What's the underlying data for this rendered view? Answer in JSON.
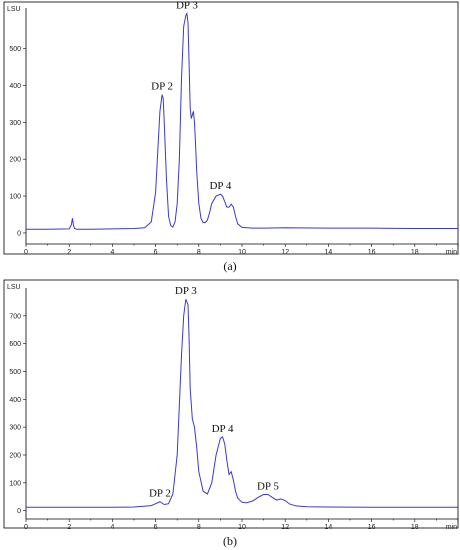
{
  "chart_data": [
    {
      "type": "line",
      "panel_label": "(a)",
      "y_unit": "LSU",
      "x_unit": "min",
      "xlim": [
        0,
        20
      ],
      "ylim": [
        -30,
        610
      ],
      "x_ticks": [
        "0",
        "2",
        "4",
        "6",
        "8",
        "10",
        "12",
        "14",
        "16",
        "18"
      ],
      "y_ticks": [
        "0",
        "100",
        "200",
        "300",
        "400",
        "500"
      ],
      "y_tick_values": [
        0,
        100,
        200,
        300,
        400,
        500
      ],
      "series": [
        {
          "color": "#3a3acc",
          "x": [
            0,
            1.0,
            2.0,
            2.1,
            2.15,
            2.2,
            2.25,
            2.35,
            3.0,
            4.0,
            5.0,
            5.5,
            5.8,
            6.0,
            6.1,
            6.2,
            6.3,
            6.35,
            6.4,
            6.5,
            6.6,
            6.7,
            6.8,
            6.9,
            7.0,
            7.1,
            7.2,
            7.3,
            7.4,
            7.45,
            7.5,
            7.55,
            7.6,
            7.65,
            7.7,
            7.75,
            7.8,
            7.85,
            7.9,
            8.0,
            8.1,
            8.2,
            8.3,
            8.4,
            8.5,
            8.6,
            8.8,
            9.0,
            9.1,
            9.2,
            9.3,
            9.4,
            9.5,
            9.6,
            9.7,
            9.8,
            10.0,
            10.5,
            11.0,
            12.0,
            14.0,
            16.0,
            18.0,
            20.0
          ],
          "y": [
            10,
            10,
            11,
            22,
            40,
            20,
            12,
            10,
            10,
            11,
            12,
            14,
            30,
            110,
            220,
            330,
            375,
            365,
            300,
            150,
            45,
            20,
            16,
            30,
            80,
            200,
            420,
            560,
            590,
            595,
            570,
            460,
            340,
            310,
            320,
            330,
            300,
            240,
            170,
            80,
            40,
            28,
            28,
            35,
            55,
            80,
            100,
            105,
            100,
            85,
            70,
            70,
            78,
            70,
            45,
            25,
            15,
            13,
            13,
            14,
            13,
            13,
            12,
            12
          ]
        }
      ],
      "annotations": [
        {
          "text": "DP 2",
          "x": 6.3,
          "y": 375
        },
        {
          "text": "DP 3",
          "x": 7.45,
          "y": 595
        },
        {
          "text": "DP 4",
          "x": 9.0,
          "y": 105
        }
      ]
    },
    {
      "type": "line",
      "panel_label": "(b)",
      "y_unit": "LSU",
      "x_unit": "min",
      "xlim": [
        0,
        20
      ],
      "ylim": [
        -30,
        800
      ],
      "x_ticks": [
        "0",
        "2",
        "4",
        "6",
        "8",
        "10",
        "12",
        "14",
        "16",
        "18"
      ],
      "y_ticks": [
        "0",
        "100",
        "200",
        "300",
        "400",
        "500",
        "600",
        "700"
      ],
      "y_tick_values": [
        0,
        100,
        200,
        300,
        400,
        500,
        600,
        700
      ],
      "series": [
        {
          "color": "#3a3acc",
          "x": [
            0,
            2.0,
            4.0,
            5.0,
            5.8,
            6.0,
            6.2,
            6.4,
            6.6,
            6.8,
            7.0,
            7.1,
            7.2,
            7.3,
            7.4,
            7.5,
            7.55,
            7.6,
            7.7,
            7.8,
            7.9,
            8.0,
            8.2,
            8.4,
            8.6,
            8.8,
            9.0,
            9.1,
            9.2,
            9.3,
            9.4,
            9.5,
            9.6,
            9.7,
            9.8,
            10.0,
            10.2,
            10.5,
            10.8,
            11.0,
            11.2,
            11.4,
            11.6,
            11.8,
            12.0,
            12.2,
            12.5,
            13.0,
            14.0,
            16.0,
            18.0,
            20.0
          ],
          "y": [
            12,
            12,
            12,
            13,
            18,
            25,
            32,
            22,
            25,
            60,
            200,
            380,
            560,
            700,
            760,
            740,
            620,
            440,
            330,
            300,
            230,
            140,
            70,
            60,
            100,
            200,
            260,
            265,
            240,
            180,
            130,
            140,
            110,
            70,
            45,
            30,
            28,
            35,
            50,
            58,
            58,
            48,
            38,
            42,
            36,
            24,
            17,
            14,
            13,
            12,
            12,
            12
          ]
        }
      ],
      "annotations": [
        {
          "text": "DP 2",
          "x": 6.2,
          "y": 32
        },
        {
          "text": "DP 3",
          "x": 7.4,
          "y": 760
        },
        {
          "text": "DP 4",
          "x": 9.1,
          "y": 265
        },
        {
          "text": "DP 5",
          "x": 11.2,
          "y": 58
        }
      ]
    }
  ]
}
